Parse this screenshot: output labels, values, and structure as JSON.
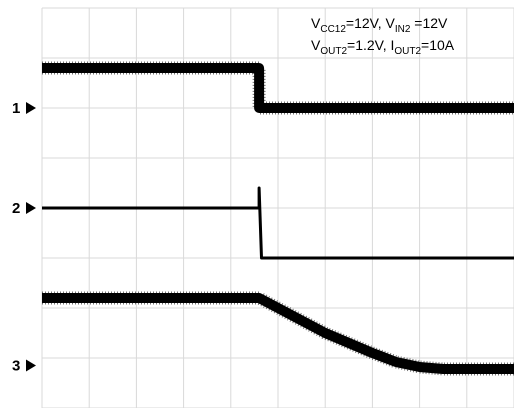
{
  "chart_data": {
    "type": "line",
    "title": "",
    "xlabel": "",
    "ylabel": "",
    "grid": true,
    "grid_divisions": {
      "x": 10,
      "y": 8
    },
    "colors": {
      "trace": "#000000",
      "grid": "#d9d9d9",
      "marker": "#000000",
      "background": "#ffffff"
    },
    "x": [
      0,
      1,
      2,
      3,
      4,
      5,
      6,
      7,
      8,
      9,
      10
    ],
    "x_range": [
      0,
      10
    ],
    "y_range": [
      0,
      8
    ],
    "channel_markers": [
      {
        "label": "1",
        "level_div": 6.0
      },
      {
        "label": "2",
        "level_div": 4.0
      },
      {
        "label": "3",
        "level_div": 0.85
      }
    ],
    "series": [
      {
        "channel": "1",
        "thickness": "noisy",
        "points": [
          [
            0,
            6.8
          ],
          [
            4.6,
            6.8
          ],
          [
            4.6,
            6.0
          ],
          [
            10,
            6.0
          ]
        ]
      },
      {
        "channel": "2",
        "thickness": "thin",
        "points": [
          [
            0,
            4.0
          ],
          [
            4.6,
            4.0
          ],
          [
            4.6,
            4.4
          ],
          [
            4.65,
            3.0
          ],
          [
            10,
            3.0
          ]
        ]
      },
      {
        "channel": "3",
        "thickness": "noisy",
        "points": [
          [
            0,
            2.2
          ],
          [
            4.6,
            2.2
          ],
          [
            5.0,
            2.0
          ],
          [
            5.5,
            1.75
          ],
          [
            6.0,
            1.5
          ],
          [
            6.5,
            1.3
          ],
          [
            7.0,
            1.1
          ],
          [
            7.5,
            0.92
          ],
          [
            8.0,
            0.82
          ],
          [
            8.5,
            0.78
          ],
          [
            10,
            0.78
          ]
        ]
      }
    ],
    "annotation": {
      "line1": [
        {
          "t": "V",
          "sub": false
        },
        {
          "t": "CC12",
          "sub": true
        },
        {
          "t": "=12V,  V",
          "sub": false
        },
        {
          "t": "IN2",
          "sub": true
        },
        {
          "t": " =12V",
          "sub": false
        }
      ],
      "line2": [
        {
          "t": "V",
          "sub": false
        },
        {
          "t": "OUT2",
          "sub": true
        },
        {
          "t": "=1.2V, I",
          "sub": false
        },
        {
          "t": "OUT2",
          "sub": true
        },
        {
          "t": "=10A",
          "sub": false
        }
      ]
    }
  }
}
